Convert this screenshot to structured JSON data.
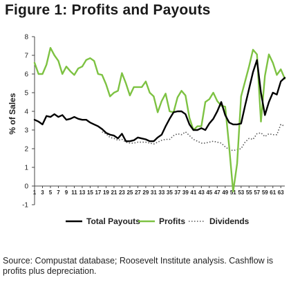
{
  "title": "Figure 1: Profits and Payouts",
  "source": "Source: Compustat database; Roosevelt Institute analysis. Cashflow is profits plus depreciation.",
  "chart_data": {
    "type": "line",
    "title": "Figure 1: Profits and Payouts",
    "xlabel": "",
    "ylabel": "% of Sales",
    "ylim": [
      -1,
      8
    ],
    "xlim": [
      1,
      64
    ],
    "yticks": [
      -1,
      0,
      1,
      2,
      3,
      4,
      5,
      6,
      7,
      8
    ],
    "xticks": [
      1,
      3,
      5,
      7,
      9,
      11,
      13,
      15,
      17,
      19,
      21,
      23,
      25,
      27,
      29,
      31,
      33,
      35,
      37,
      39,
      41,
      43,
      45,
      47,
      49,
      51,
      53,
      55,
      57,
      59,
      61,
      63
    ],
    "grid": false,
    "legend_position": "bottom",
    "x": [
      1,
      2,
      3,
      4,
      5,
      6,
      7,
      8,
      9,
      10,
      11,
      12,
      13,
      14,
      15,
      16,
      17,
      18,
      19,
      20,
      21,
      22,
      23,
      24,
      25,
      26,
      27,
      28,
      29,
      30,
      31,
      32,
      33,
      34,
      35,
      36,
      37,
      38,
      39,
      40,
      41,
      42,
      43,
      44,
      45,
      46,
      47,
      48,
      49,
      50,
      51,
      52,
      53,
      54,
      55,
      56,
      57,
      58,
      59,
      60,
      61,
      62,
      63,
      64
    ],
    "series": [
      {
        "name": "Total Payouts",
        "color": "#000000",
        "style": "solid",
        "values": [
          3.55,
          3.45,
          3.3,
          3.75,
          3.7,
          3.85,
          3.7,
          3.8,
          3.55,
          3.6,
          3.7,
          3.6,
          3.55,
          3.55,
          3.4,
          3.3,
          3.2,
          3.05,
          2.85,
          2.75,
          2.7,
          2.55,
          2.8,
          2.4,
          2.4,
          2.45,
          2.6,
          2.55,
          2.5,
          2.4,
          2.4,
          2.6,
          2.75,
          3.2,
          3.6,
          3.95,
          4.0,
          4.0,
          3.85,
          3.3,
          3.0,
          3.0,
          3.1,
          3.0,
          3.35,
          3.6,
          4.0,
          4.5,
          3.8,
          3.4,
          3.3,
          3.3,
          3.35,
          4.3,
          5.2,
          6.1,
          6.75,
          5.0,
          3.8,
          4.5,
          5.0,
          4.9,
          5.6,
          5.8
        ]
      },
      {
        "name": "Profits",
        "color": "#7dc242",
        "style": "solid",
        "values": [
          6.6,
          6.0,
          6.0,
          6.5,
          7.4,
          7.0,
          6.7,
          6.0,
          6.4,
          6.15,
          5.95,
          6.3,
          6.4,
          6.75,
          6.85,
          6.7,
          6.0,
          5.95,
          5.45,
          4.8,
          5.0,
          5.1,
          6.05,
          5.5,
          4.85,
          5.3,
          5.3,
          5.3,
          5.6,
          5.0,
          4.8,
          3.95,
          4.55,
          4.95,
          4.0,
          3.95,
          4.75,
          5.1,
          4.85,
          3.65,
          3.0,
          3.2,
          3.2,
          4.5,
          4.65,
          5.0,
          4.55,
          4.3,
          4.25,
          2.1,
          -0.3,
          1.2,
          4.8,
          5.6,
          6.4,
          7.3,
          7.05,
          3.45,
          5.9,
          7.05,
          6.6,
          5.95,
          6.25,
          5.75
        ]
      },
      {
        "name": "Dividends",
        "color": "#555555",
        "style": "dotted",
        "values": [
          null,
          null,
          null,
          null,
          null,
          null,
          null,
          null,
          null,
          null,
          null,
          null,
          null,
          null,
          null,
          null,
          null,
          2.9,
          2.8,
          2.6,
          2.55,
          2.45,
          2.5,
          2.35,
          2.3,
          2.3,
          2.35,
          2.35,
          2.35,
          2.3,
          2.25,
          2.35,
          2.45,
          2.5,
          2.5,
          2.7,
          2.8,
          2.75,
          2.9,
          2.7,
          2.5,
          2.4,
          2.3,
          2.3,
          2.35,
          2.4,
          2.35,
          2.3,
          2.1,
          1.95,
          1.9,
          1.95,
          2.0,
          2.35,
          2.55,
          2.5,
          2.8,
          2.85,
          2.65,
          2.8,
          2.75,
          2.75,
          3.3,
          3.2
        ]
      }
    ]
  }
}
